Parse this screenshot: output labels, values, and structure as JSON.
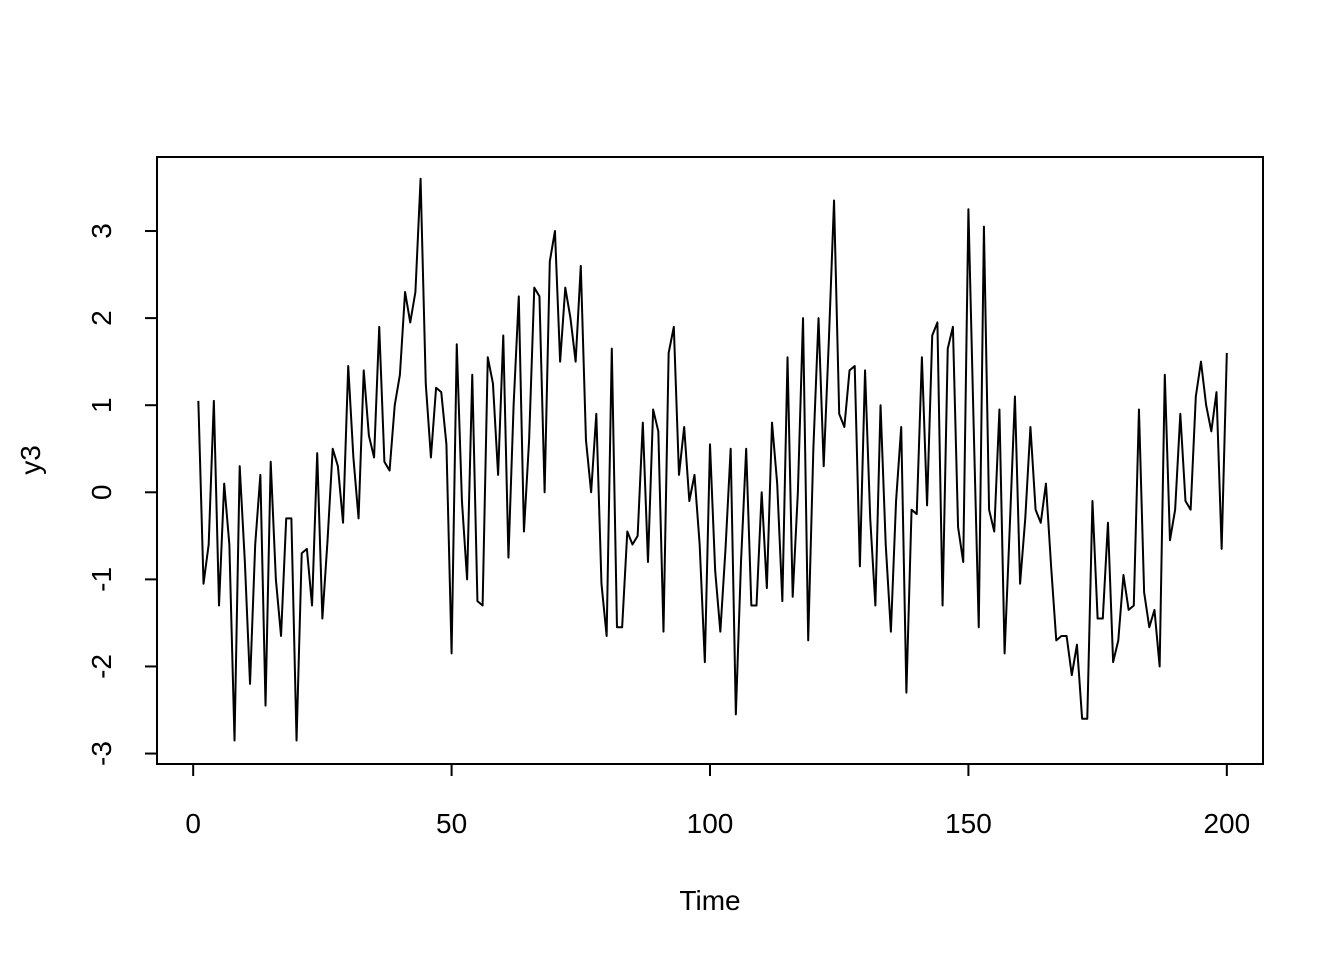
{
  "chart_data": {
    "type": "line",
    "title": "",
    "xlabel": "Time",
    "ylabel": "y3",
    "xlim": [
      -7,
      207
    ],
    "ylim": [
      -3.12,
      3.85
    ],
    "x_ticks": [
      0,
      50,
      100,
      150,
      200
    ],
    "x_tick_labels": [
      "0",
      "50",
      "100",
      "150",
      "200"
    ],
    "y_ticks": [
      -3,
      -2,
      -1,
      0,
      1,
      2,
      3
    ],
    "y_tick_labels": [
      "-3",
      "-2",
      "-1",
      "0",
      "1",
      "2",
      "3"
    ],
    "grid": false,
    "legend": "none",
    "line_color": "#000000",
    "series": [
      {
        "x_start": 1,
        "x_step": 1,
        "values": [
          1.05,
          -1.05,
          -0.6,
          1.05,
          -1.3,
          0.1,
          -0.6,
          -2.85,
          0.3,
          -0.8,
          -2.2,
          -0.6,
          0.2,
          -2.45,
          0.35,
          -1.0,
          -1.65,
          -0.3,
          -0.3,
          -2.85,
          -0.7,
          -0.65,
          -1.3,
          0.45,
          -1.45,
          -0.55,
          0.5,
          0.3,
          -0.35,
          1.45,
          0.4,
          -0.3,
          1.4,
          0.65,
          0.4,
          1.9,
          0.35,
          0.25,
          1.0,
          1.35,
          2.3,
          1.95,
          2.3,
          3.6,
          1.25,
          0.4,
          1.2,
          1.15,
          0.55,
          -1.85,
          1.7,
          -0.1,
          -1.0,
          1.35,
          -1.25,
          -1.3,
          1.55,
          1.25,
          0.2,
          1.8,
          -0.75,
          1.0,
          2.25,
          -0.45,
          0.6,
          2.35,
          2.25,
          0.0,
          2.65,
          3.0,
          1.5,
          2.35,
          2.0,
          1.5,
          2.6,
          0.6,
          0.0,
          0.9,
          -1.05,
          -1.65,
          1.65,
          -1.55,
          -1.55,
          -0.45,
          -0.6,
          -0.5,
          0.8,
          -0.8,
          0.95,
          0.7,
          -1.6,
          1.6,
          1.9,
          0.2,
          0.75,
          -0.1,
          0.2,
          -0.6,
          -1.95,
          0.55,
          -0.9,
          -1.6,
          -0.65,
          0.5,
          -2.55,
          -0.8,
          0.5,
          -1.3,
          -1.3,
          0.0,
          -1.1,
          0.8,
          0.1,
          -1.25,
          1.55,
          -1.2,
          0.0,
          2.0,
          -1.7,
          0.5,
          2.0,
          0.3,
          1.75,
          3.35,
          0.9,
          0.75,
          1.4,
          1.45,
          -0.85,
          1.4,
          -0.3,
          -1.3,
          1.0,
          -0.6,
          -1.6,
          -0.1,
          0.75,
          -2.3,
          -0.2,
          -0.25,
          1.55,
          -0.15,
          1.8,
          1.95,
          -1.3,
          1.65,
          1.9,
          -0.4,
          -0.8,
          3.25,
          0.8,
          -1.55,
          3.05,
          -0.2,
          -0.45,
          0.95,
          -1.85,
          -0.4,
          1.1,
          -1.05,
          -0.3,
          0.75,
          -0.2,
          -0.35,
          0.1,
          -0.85,
          -1.7,
          -1.65,
          -1.65,
          -2.1,
          -1.75,
          -2.6,
          -2.6,
          -0.1,
          -1.45,
          -1.45,
          -0.35,
          -1.95,
          -1.7,
          -0.95,
          -1.35,
          -1.3,
          0.95,
          -1.15,
          -1.55,
          -1.35,
          -2.0,
          1.35,
          -0.55,
          -0.2,
          0.9,
          -0.1,
          -0.2,
          1.1,
          1.5,
          1.0,
          0.7,
          1.15,
          -0.65,
          1.6
        ]
      }
    ]
  }
}
